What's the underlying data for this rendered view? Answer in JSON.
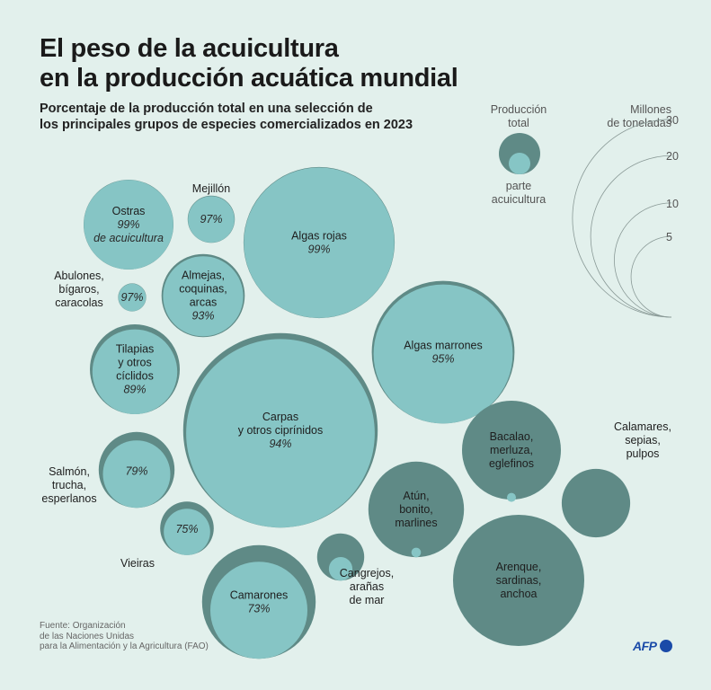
{
  "title_line1": "El peso de la acuicultura",
  "title_line2": "en la producción acuática mundial",
  "subtitle_line1": "Porcentaje de la producción total en una selección de",
  "subtitle_line2": "los principales grupos de especies comercializados en 2023",
  "legend": {
    "total_label_1": "Producción",
    "total_label_2": "total",
    "aqua_label_1": "parte",
    "aqua_label_2": "acuicultura",
    "scale_title_1": "Millones",
    "scale_title_2": "de toneladas",
    "scale_values": [
      30,
      20,
      10,
      5
    ]
  },
  "source": {
    "line1": "Fuente:  Organización",
    "line2": "de las Naciones Unidas",
    "line3": "para la Alimentación y la Agricultura (FAO)"
  },
  "logo": "AFP",
  "colors": {
    "background": "#e2f0ec",
    "total": "#5f8a86",
    "aquaculture": "#86c5c5"
  },
  "chart_data": {
    "type": "bubble",
    "title": "El peso de la acuicultura en la producción acuática mundial",
    "subtitle": "Porcentaje de la producción total en una selección de los principales grupos de especies comercializados en 2023",
    "size_unit": "Millones de toneladas",
    "series": [
      {
        "name": "Ostras",
        "label_lines": [
          "Ostras"
        ],
        "pct_label": "99%",
        "pct_suffix": "de acuicultura",
        "aquaculture_pct": 99,
        "total_mt": 6.2
      },
      {
        "name": "Mejillón",
        "label_lines": [
          "Mejillón"
        ],
        "pct_label": "97%",
        "aquaculture_pct": 97,
        "total_mt": 1.7
      },
      {
        "name": "Algas rojas",
        "label_lines": [
          "Algas rojas"
        ],
        "pct_label": "99%",
        "aquaculture_pct": 99,
        "total_mt": 17.5
      },
      {
        "name": "Abulones, bígaros, caracolas",
        "label_lines": [
          "Abulones,",
          "bígaros,",
          "caracolas"
        ],
        "pct_label": "97%",
        "aquaculture_pct": 97,
        "total_mt": 0.6
      },
      {
        "name": "Almejas, coquinas, arcas",
        "label_lines": [
          "Almejas,",
          "coquinas,",
          "arcas"
        ],
        "pct_label": "93%",
        "aquaculture_pct": 93,
        "total_mt": 5.3
      },
      {
        "name": "Algas marrones",
        "label_lines": [
          "Algas marrones"
        ],
        "pct_label": "95%",
        "aquaculture_pct": 95,
        "total_mt": 15.6
      },
      {
        "name": "Tilapias y otros cíclidos",
        "label_lines": [
          "Tilapias",
          "y otros",
          "cíclidos"
        ],
        "pct_label": "89%",
        "aquaculture_pct": 89,
        "total_mt": 6.2
      },
      {
        "name": "Carpas y otros ciprínidos",
        "label_lines": [
          "Carpas",
          "y otros ciprínidos"
        ],
        "pct_label": "94%",
        "aquaculture_pct": 94,
        "total_mt": 29.0
      },
      {
        "name": "Salmón, trucha, esperlanos",
        "label_lines": [
          "Salmón,",
          "trucha,",
          "esperlanos"
        ],
        "pct_label": "79%",
        "aquaculture_pct": 79,
        "total_mt": 4.4
      },
      {
        "name": "Vieiras",
        "label_lines": [
          "Vieiras"
        ],
        "pct_label": "75%",
        "aquaculture_pct": 75,
        "total_mt": 2.2
      },
      {
        "name": "Camarones",
        "label_lines": [
          "Camarones"
        ],
        "pct_label": "73%",
        "aquaculture_pct": 73,
        "total_mt": 9.9
      },
      {
        "name": "Cangrejos, arañas de mar",
        "label_lines": [
          "Cangrejos,",
          "arañas",
          "de mar"
        ],
        "pct_label": "",
        "aquaculture_pct": 25,
        "total_mt": 1.7
      },
      {
        "name": "Atún, bonito, marlines",
        "label_lines": [
          "Atún,",
          "bonito,",
          "marlines"
        ],
        "pct_label": "",
        "aquaculture_pct": 1,
        "total_mt": 7.0
      },
      {
        "name": "Bacalao, merluza, eglefinos",
        "label_lines": [
          "Bacalao,",
          "merluza,",
          "eglefinos"
        ],
        "pct_label": "",
        "aquaculture_pct": 0.2,
        "total_mt": 7.5
      },
      {
        "name": "Calamares, sepias, pulpos",
        "label_lines": [
          "Calamares,",
          "sepias,",
          "pulpos"
        ],
        "pct_label": "",
        "aquaculture_pct": 0,
        "total_mt": 3.6
      },
      {
        "name": "Arenque, sardinas, anchoa",
        "label_lines": [
          "Arenque,",
          "sardinas,",
          "anchoa"
        ],
        "pct_label": "",
        "aquaculture_pct": 0,
        "total_mt": 13.2
      }
    ]
  }
}
